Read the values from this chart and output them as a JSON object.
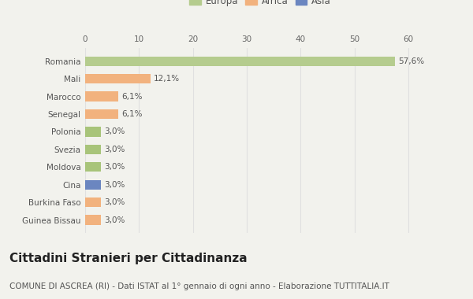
{
  "categories": [
    "Guinea Bissau",
    "Burkina Faso",
    "Cina",
    "Moldova",
    "Svezia",
    "Polonia",
    "Senegal",
    "Marocco",
    "Mali",
    "Romania"
  ],
  "values": [
    3.0,
    3.0,
    3.0,
    3.0,
    3.0,
    3.0,
    6.1,
    6.1,
    12.1,
    57.6
  ],
  "labels": [
    "3,0%",
    "3,0%",
    "3,0%",
    "3,0%",
    "3,0%",
    "3,0%",
    "6,1%",
    "6,1%",
    "12,1%",
    "57,6%"
  ],
  "colors": [
    "#f2b27e",
    "#f2b27e",
    "#6b86c0",
    "#a8c47a",
    "#a8c47a",
    "#a8c47a",
    "#f2b27e",
    "#f2b27e",
    "#f2b27e",
    "#b5cc8e"
  ],
  "legend_labels": [
    "Europa",
    "Africa",
    "Asia"
  ],
  "legend_colors": [
    "#b5cc8e",
    "#f2b27e",
    "#6b86c0"
  ],
  "xlim": [
    0,
    65
  ],
  "xticks": [
    0,
    10,
    20,
    30,
    40,
    50,
    60
  ],
  "title": "Cittadini Stranieri per Cittadinanza",
  "subtitle": "COMUNE DI ASCREA (RI) - Dati ISTAT al 1° gennaio di ogni anno - Elaborazione TUTTITALIA.IT",
  "background_color": "#f2f2ed",
  "grid_color": "#e0e0e0",
  "title_fontsize": 11,
  "subtitle_fontsize": 7.5,
  "label_fontsize": 7.5,
  "tick_fontsize": 7.5,
  "legend_fontsize": 8.5
}
